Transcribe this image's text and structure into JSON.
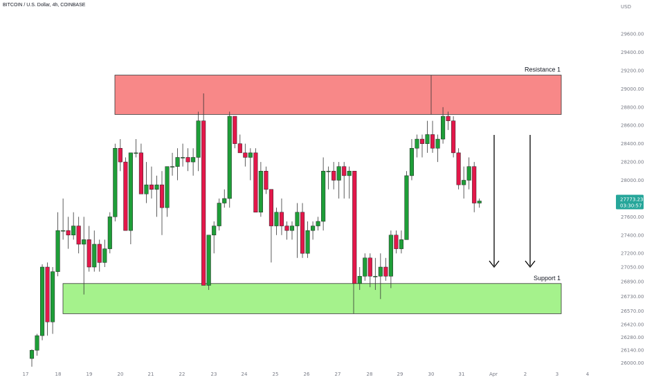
{
  "header": {
    "symbol_title": "BITCOIN / U.S. Dollar, 4h, COINBASE",
    "currency": "USD"
  },
  "price_badge": {
    "price": "27773.23",
    "countdown": "03:30:57",
    "color": "#26a69a"
  },
  "zones": {
    "resistance": {
      "label": "Resistance 1",
      "top": 29150,
      "bottom": 28720,
      "fill": "#f88888"
    },
    "support": {
      "label": "Support 1",
      "top": 26870,
      "bottom": 26540,
      "fill": "#a5f28c"
    }
  },
  "colors": {
    "up": "#1e9e38",
    "down": "#e3174a",
    "arrows": "#000000",
    "axis_text": "#787b86"
  },
  "chart_data": {
    "type": "candlestick",
    "title": "BITCOIN / U.S. Dollar, 4h, COINBASE",
    "y_unit": "USD",
    "ylim": [
      25960,
      29760
    ],
    "y_ticks": [
      "29600.00",
      "29400.00",
      "29200.00",
      "29000.00",
      "28800.00",
      "28600.00",
      "28400.00",
      "28200.00",
      "28000.00",
      "27800.00",
      "27600.00",
      "27400.00",
      "27200.00",
      "27050.00",
      "26890.00",
      "26730.00",
      "26570.00",
      "26420.00",
      "26280.00",
      "26140.00",
      "26000.00"
    ],
    "x_ticks": [
      "17",
      "18",
      "19",
      "20",
      "21",
      "22",
      "23",
      "24",
      "25",
      "26",
      "27",
      "28",
      "29",
      "30",
      "31",
      "Apr",
      "2",
      "3",
      "4"
    ],
    "last_price": 27773.23,
    "candles": [
      {
        "o": 26050,
        "h": 26150,
        "l": 25960,
        "c": 26140
      },
      {
        "o": 26140,
        "h": 26320,
        "l": 26080,
        "c": 26300
      },
      {
        "o": 26300,
        "h": 27080,
        "l": 26250,
        "c": 27050
      },
      {
        "o": 27050,
        "h": 27100,
        "l": 26300,
        "c": 26450
      },
      {
        "o": 26450,
        "h": 27050,
        "l": 26320,
        "c": 27000
      },
      {
        "o": 27000,
        "h": 27650,
        "l": 26950,
        "c": 27450
      },
      {
        "o": 27450,
        "h": 27800,
        "l": 27350,
        "c": 27450
      },
      {
        "o": 27450,
        "h": 27600,
        "l": 27250,
        "c": 27400
      },
      {
        "o": 27400,
        "h": 27650,
        "l": 27350,
        "c": 27500
      },
      {
        "o": 27500,
        "h": 27600,
        "l": 27200,
        "c": 27300
      },
      {
        "o": 27300,
        "h": 27600,
        "l": 26750,
        "c": 27350
      },
      {
        "o": 27350,
        "h": 27500,
        "l": 27000,
        "c": 27050
      },
      {
        "o": 27050,
        "h": 27450,
        "l": 27000,
        "c": 27300
      },
      {
        "o": 27300,
        "h": 27350,
        "l": 27000,
        "c": 27100
      },
      {
        "o": 27100,
        "h": 27350,
        "l": 27050,
        "c": 27250
      },
      {
        "o": 27250,
        "h": 27650,
        "l": 27200,
        "c": 27600
      },
      {
        "o": 27600,
        "h": 28400,
        "l": 27550,
        "c": 28350
      },
      {
        "o": 28350,
        "h": 28450,
        "l": 28100,
        "c": 28200
      },
      {
        "o": 28200,
        "h": 28250,
        "l": 27450,
        "c": 27450
      },
      {
        "o": 27450,
        "h": 28300,
        "l": 27300,
        "c": 28300
      },
      {
        "o": 28300,
        "h": 28450,
        "l": 28250,
        "c": 28300
      },
      {
        "o": 28300,
        "h": 28400,
        "l": 27850,
        "c": 27850
      },
      {
        "o": 27850,
        "h": 28200,
        "l": 27750,
        "c": 27950
      },
      {
        "o": 27950,
        "h": 28150,
        "l": 27800,
        "c": 27900
      },
      {
        "o": 27900,
        "h": 28050,
        "l": 27600,
        "c": 27950
      },
      {
        "o": 27950,
        "h": 28100,
        "l": 27400,
        "c": 27700
      },
      {
        "o": 27700,
        "h": 28150,
        "l": 27600,
        "c": 28150
      },
      {
        "o": 28150,
        "h": 28300,
        "l": 28050,
        "c": 28150
      },
      {
        "o": 28150,
        "h": 28350,
        "l": 28000,
        "c": 28250
      },
      {
        "o": 28250,
        "h": 28400,
        "l": 28150,
        "c": 28250
      },
      {
        "o": 28250,
        "h": 28350,
        "l": 28100,
        "c": 28200
      },
      {
        "o": 28200,
        "h": 28350,
        "l": 28050,
        "c": 28250
      },
      {
        "o": 28250,
        "h": 28750,
        "l": 28100,
        "c": 28650
      },
      {
        "o": 28650,
        "h": 28950,
        "l": 26850,
        "c": 26850
      },
      {
        "o": 26850,
        "h": 27400,
        "l": 26800,
        "c": 27400
      },
      {
        "o": 27400,
        "h": 27550,
        "l": 27200,
        "c": 27500
      },
      {
        "o": 27500,
        "h": 27800,
        "l": 27450,
        "c": 27750
      },
      {
        "o": 27750,
        "h": 27900,
        "l": 27700,
        "c": 27800
      },
      {
        "o": 27800,
        "h": 28750,
        "l": 27700,
        "c": 28700
      },
      {
        "o": 28700,
        "h": 28700,
        "l": 28350,
        "c": 28400
      },
      {
        "o": 28400,
        "h": 28500,
        "l": 28300,
        "c": 28300
      },
      {
        "o": 28300,
        "h": 28400,
        "l": 28150,
        "c": 28250
      },
      {
        "o": 28250,
        "h": 28350,
        "l": 28000,
        "c": 28300
      },
      {
        "o": 28300,
        "h": 28350,
        "l": 27650,
        "c": 27650
      },
      {
        "o": 27650,
        "h": 28200,
        "l": 27600,
        "c": 28100
      },
      {
        "o": 28100,
        "h": 28150,
        "l": 27850,
        "c": 27900
      },
      {
        "o": 27900,
        "h": 27900,
        "l": 27100,
        "c": 27500
      },
      {
        "o": 27500,
        "h": 27700,
        "l": 27400,
        "c": 27650
      },
      {
        "o": 27650,
        "h": 27800,
        "l": 27400,
        "c": 27500
      },
      {
        "o": 27500,
        "h": 27550,
        "l": 27350,
        "c": 27450
      },
      {
        "o": 27450,
        "h": 27550,
        "l": 27350,
        "c": 27500
      },
      {
        "o": 27500,
        "h": 27750,
        "l": 27150,
        "c": 27650
      },
      {
        "o": 27650,
        "h": 27750,
        "l": 27150,
        "c": 27200
      },
      {
        "o": 27200,
        "h": 27550,
        "l": 27150,
        "c": 27450
      },
      {
        "o": 27450,
        "h": 27550,
        "l": 27350,
        "c": 27500
      },
      {
        "o": 27500,
        "h": 27600,
        "l": 27450,
        "c": 27550
      },
      {
        "o": 27550,
        "h": 28250,
        "l": 27450,
        "c": 28100
      },
      {
        "o": 28100,
        "h": 28150,
        "l": 27900,
        "c": 28100
      },
      {
        "o": 28100,
        "h": 28200,
        "l": 27900,
        "c": 28000
      },
      {
        "o": 28000,
        "h": 28200,
        "l": 27800,
        "c": 28150
      },
      {
        "o": 28150,
        "h": 28200,
        "l": 27800,
        "c": 28050
      },
      {
        "o": 28050,
        "h": 28150,
        "l": 27800,
        "c": 28100
      },
      {
        "o": 28100,
        "h": 28100,
        "l": 26870,
        "c": 26870
      },
      {
        "o": 26870,
        "h": 27050,
        "l": 26800,
        "c": 26950
      },
      {
        "o": 26950,
        "h": 27200,
        "l": 26900,
        "c": 27150
      },
      {
        "o": 27150,
        "h": 27200,
        "l": 26830,
        "c": 26950
      },
      {
        "o": 26950,
        "h": 27150,
        "l": 26800,
        "c": 26950
      },
      {
        "o": 26950,
        "h": 27200,
        "l": 26700,
        "c": 27050
      },
      {
        "o": 27050,
        "h": 27150,
        "l": 26900,
        "c": 26950
      },
      {
        "o": 26950,
        "h": 27450,
        "l": 26820,
        "c": 27400
      },
      {
        "o": 27400,
        "h": 27450,
        "l": 27200,
        "c": 27250
      },
      {
        "o": 27250,
        "h": 27450,
        "l": 27200,
        "c": 27350
      },
      {
        "o": 27350,
        "h": 28100,
        "l": 27350,
        "c": 28050
      },
      {
        "o": 28050,
        "h": 28450,
        "l": 28000,
        "c": 28350
      },
      {
        "o": 28350,
        "h": 28500,
        "l": 28250,
        "c": 28450
      },
      {
        "o": 28450,
        "h": 28500,
        "l": 28250,
        "c": 28400
      },
      {
        "o": 28400,
        "h": 28650,
        "l": 28300,
        "c": 28500
      },
      {
        "o": 28500,
        "h": 28650,
        "l": 28300,
        "c": 28350
      },
      {
        "o": 28350,
        "h": 28500,
        "l": 28200,
        "c": 28450
      },
      {
        "o": 28450,
        "h": 28800,
        "l": 28400,
        "c": 28700
      },
      {
        "o": 28700,
        "h": 28750,
        "l": 28550,
        "c": 28650
      },
      {
        "o": 28650,
        "h": 28700,
        "l": 28250,
        "c": 28300
      },
      {
        "o": 28300,
        "h": 28350,
        "l": 27900,
        "c": 27950
      },
      {
        "o": 27950,
        "h": 28150,
        "l": 27800,
        "c": 28000
      },
      {
        "o": 28000,
        "h": 28250,
        "l": 27900,
        "c": 28150
      },
      {
        "o": 28150,
        "h": 28200,
        "l": 27650,
        "c": 27750
      },
      {
        "o": 27750,
        "h": 27800,
        "l": 27700,
        "c": 27773
      }
    ]
  }
}
